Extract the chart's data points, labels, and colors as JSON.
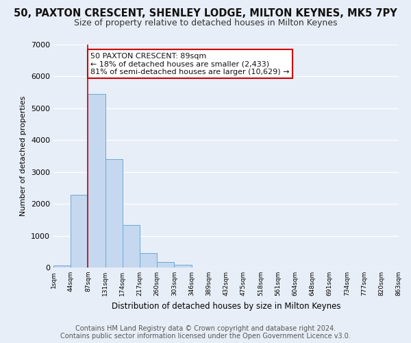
{
  "title": "50, PAXTON CRESCENT, SHENLEY LODGE, MILTON KEYNES, MK5 7PY",
  "subtitle": "Size of property relative to detached houses in Milton Keynes",
  "xlabel": "Distribution of detached houses by size in Milton Keynes",
  "ylabel": "Number of detached properties",
  "bin_labels": [
    "1sqm",
    "44sqm",
    "87sqm",
    "131sqm",
    "174sqm",
    "217sqm",
    "260sqm",
    "303sqm",
    "346sqm",
    "389sqm",
    "432sqm",
    "475sqm",
    "518sqm",
    "561sqm",
    "604sqm",
    "648sqm",
    "691sqm",
    "734sqm",
    "777sqm",
    "820sqm",
    "863sqm"
  ],
  "bar_values": [
    75,
    2280,
    5460,
    3410,
    1340,
    450,
    170,
    90,
    0,
    0,
    0,
    0,
    0,
    0,
    0,
    0,
    0,
    0,
    0,
    0
  ],
  "bar_color": "#c5d8f0",
  "bar_edge_color": "#6aaad4",
  "annotation_text": "50 PAXTON CRESCENT: 89sqm\n← 18% of detached houses are smaller (2,433)\n81% of semi-detached houses are larger (10,629) →",
  "annotation_box_color": "#ffffff",
  "annotation_box_edge_color": "#cc0000",
  "vline_color": "#cc0000",
  "ylim": [
    0,
    7000
  ],
  "yticks": [
    0,
    1000,
    2000,
    3000,
    4000,
    5000,
    6000,
    7000
  ],
  "footer1": "Contains HM Land Registry data © Crown copyright and database right 2024.",
  "footer2": "Contains public sector information licensed under the Open Government Licence v3.0.",
  "background_color": "#e8eef7",
  "plot_background": "#e8eef7",
  "grid_color": "#ffffff",
  "title_fontsize": 10.5,
  "subtitle_fontsize": 9,
  "footer_fontsize": 7
}
